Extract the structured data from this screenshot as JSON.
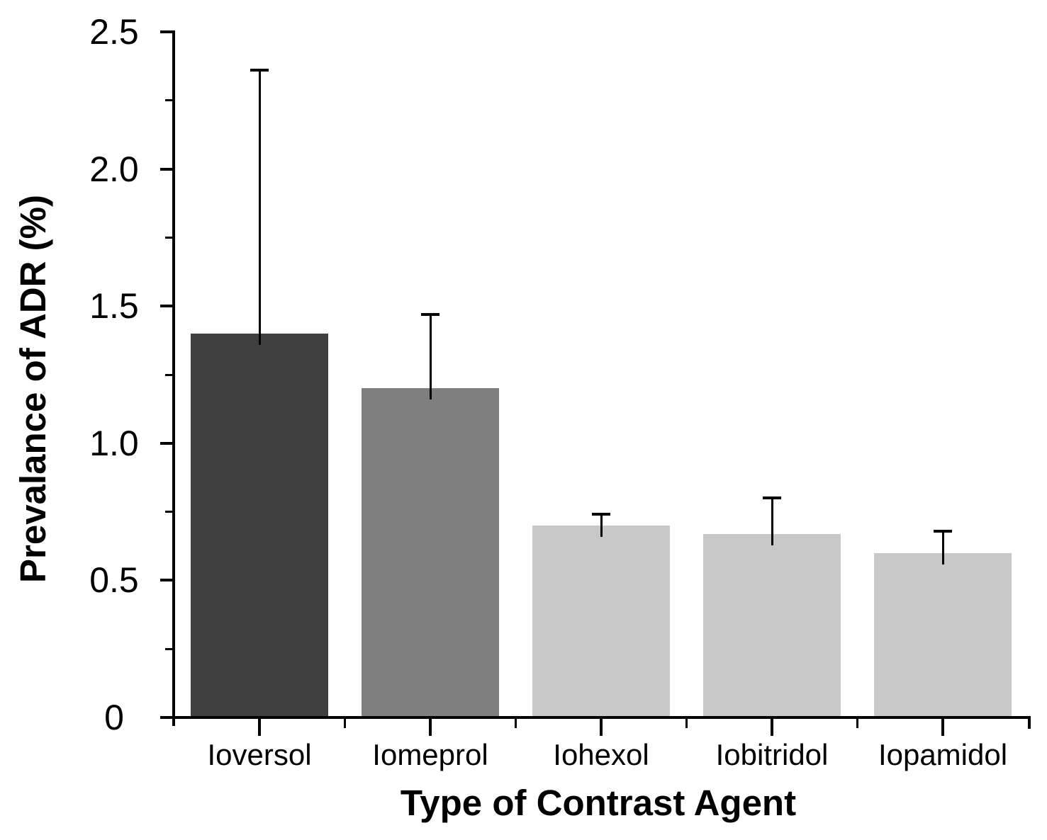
{
  "chart_data": {
    "type": "bar",
    "title": "",
    "xlabel": "Type of Contrast Agent",
    "ylabel": "Prevalance of ADR (%)",
    "categories": [
      "Ioversol",
      "Iomeprol",
      "Iohexol",
      "Iobitridol",
      "Iopamidol"
    ],
    "values": [
      1.4,
      1.2,
      0.7,
      0.67,
      0.6
    ],
    "error_top_values": [
      2.36,
      1.47,
      0.74,
      0.8,
      0.68
    ],
    "error_bar_direction": "up",
    "bar_colors": [
      "#404040",
      "#7f7f7f",
      "#c8c8c8",
      "#c8c8c8",
      "#c8c8c8"
    ],
    "ylim": [
      0,
      2.5
    ],
    "y_major_tick_step": 0.5,
    "y_minor_tick_step": 0.25,
    "y_tick_labels": [
      "0",
      "0.5",
      "1.0",
      "1.5",
      "2.0",
      "2.5"
    ],
    "grid": false,
    "legend": "none",
    "axis_color": "#000000",
    "text_color": "#000000",
    "background_color": "#ffffff"
  }
}
